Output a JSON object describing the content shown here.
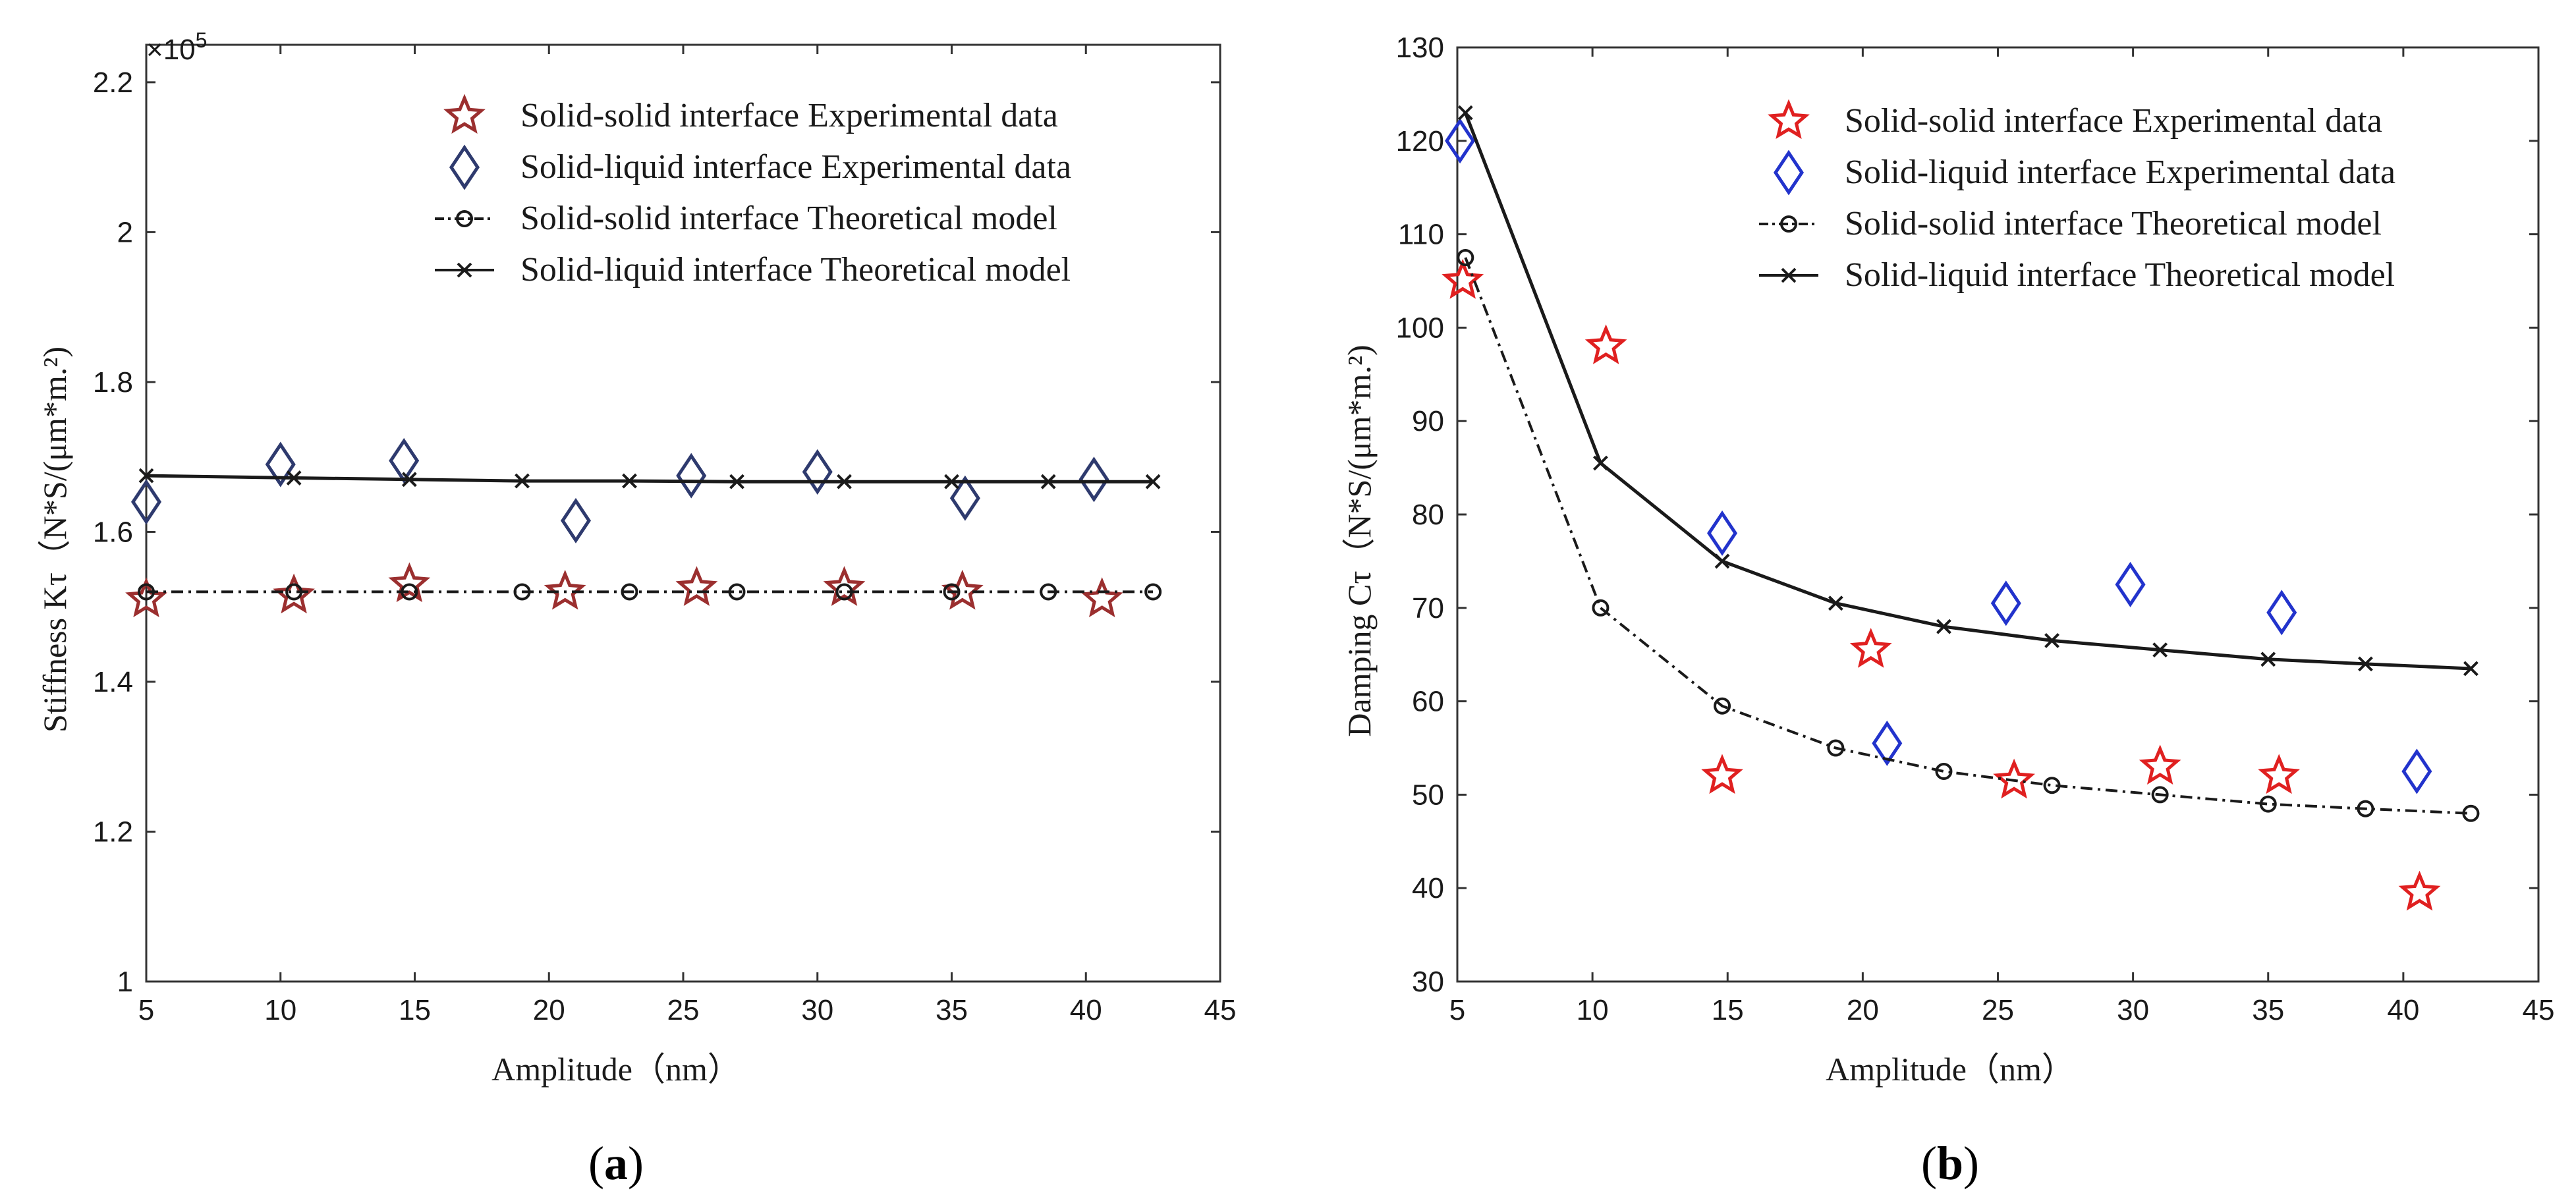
{
  "chart_data": [
    {
      "panel": "a",
      "panel_label": "(a)",
      "panel_letter": "a",
      "type": "line",
      "xlabel": "Amplitude（nm）",
      "ylabel": "Stiffness Kτ（N*S/(μm*m.²)",
      "y_multiplier": "×10^5",
      "xlim": [
        5,
        45
      ],
      "ylim": [
        1.0,
        2.25
      ],
      "xticks": [
        5,
        10,
        15,
        20,
        25,
        30,
        35,
        40,
        45
      ],
      "yticks": [
        1,
        1.2,
        1.4,
        1.6,
        1.8,
        2,
        2.2
      ],
      "grid": false,
      "legend_position": "top-right",
      "series": [
        {
          "name": "Solid-solid interface Experimental data",
          "marker": "star",
          "line": "none",
          "color": "#9b2f2f",
          "x": [
            5,
            10.5,
            14.8,
            20.6,
            25.5,
            31,
            35.4,
            40.6
          ],
          "y": [
            1.51,
            1.515,
            1.53,
            1.52,
            1.525,
            1.525,
            1.52,
            1.51
          ]
        },
        {
          "name": "Solid-liquid interface Experimental data",
          "marker": "diamond",
          "line": "none",
          "color": "#2e3a6e",
          "x": [
            5,
            10,
            14.6,
            21,
            25.3,
            30,
            35.5,
            40.3
          ],
          "y": [
            1.64,
            1.69,
            1.695,
            1.615,
            1.675,
            1.68,
            1.645,
            1.67
          ]
        },
        {
          "name": "Solid-solid interface Theoretical model",
          "marker": "circle",
          "line": "dashdot",
          "color": "#1a1a1a",
          "x": [
            5,
            10.5,
            14.8,
            19,
            23,
            27,
            31,
            35,
            38.6,
            42.5
          ],
          "y": [
            1.52,
            1.52,
            1.52,
            1.52,
            1.52,
            1.52,
            1.52,
            1.52,
            1.52,
            1.52
          ]
        },
        {
          "name": "Solid-liquid interface Theoretical model",
          "marker": "x",
          "line": "solid",
          "color": "#1a1a1a",
          "x": [
            5,
            10.5,
            14.8,
            19,
            23,
            27,
            31,
            35,
            38.6,
            42.5
          ],
          "y": [
            1.675,
            1.672,
            1.67,
            1.668,
            1.668,
            1.667,
            1.667,
            1.667,
            1.667,
            1.667
          ]
        }
      ]
    },
    {
      "panel": "b",
      "panel_label": "(b)",
      "panel_letter": "b",
      "type": "line",
      "xlabel": "Amplitude（nm）",
      "ylabel": "Damping Cτ（N*S/(μm*m.²)",
      "xlim": [
        5,
        45
      ],
      "ylim": [
        30,
        130
      ],
      "xticks": [
        5,
        10,
        15,
        20,
        25,
        30,
        35,
        40,
        45
      ],
      "yticks": [
        30,
        40,
        50,
        60,
        70,
        80,
        90,
        100,
        110,
        120,
        130
      ],
      "grid": false,
      "legend_position": "top-right",
      "series": [
        {
          "name": "Solid-solid interface Experimental data",
          "marker": "star",
          "line": "none",
          "color": "#e02020",
          "x": [
            5.2,
            10.5,
            14.8,
            20.3,
            25.6,
            31,
            35.4,
            40.6
          ],
          "y": [
            105,
            98,
            52,
            65.5,
            51.5,
            53,
            52,
            39.5
          ]
        },
        {
          "name": "Solid-liquid interface Experimental data",
          "marker": "diamond",
          "line": "none",
          "color": "#2233cc",
          "x": [
            5.1,
            14.8,
            20.9,
            25.3,
            29.9,
            35.5,
            40.5
          ],
          "y": [
            120,
            78,
            55.5,
            70.5,
            72.5,
            69.5,
            52.5
          ]
        },
        {
          "name": "Solid-solid interface Theoretical model",
          "marker": "circle",
          "line": "dashdot",
          "color": "#1a1a1a",
          "x": [
            5.3,
            10.3,
            14.8,
            19,
            23,
            27,
            31,
            35,
            38.6,
            42.5
          ],
          "y": [
            107.5,
            70,
            59.5,
            55,
            52.5,
            51,
            50,
            49,
            48.5,
            48
          ]
        },
        {
          "name": "Solid-liquid interface Theoretical model",
          "marker": "x",
          "line": "solid",
          "color": "#1a1a1a",
          "x": [
            5.3,
            10.3,
            14.8,
            19,
            23,
            27,
            31,
            35,
            38.6,
            42.5
          ],
          "y": [
            123,
            85.5,
            75,
            70.5,
            68,
            66.5,
            65.5,
            64.5,
            64,
            63.5
          ]
        }
      ]
    }
  ]
}
